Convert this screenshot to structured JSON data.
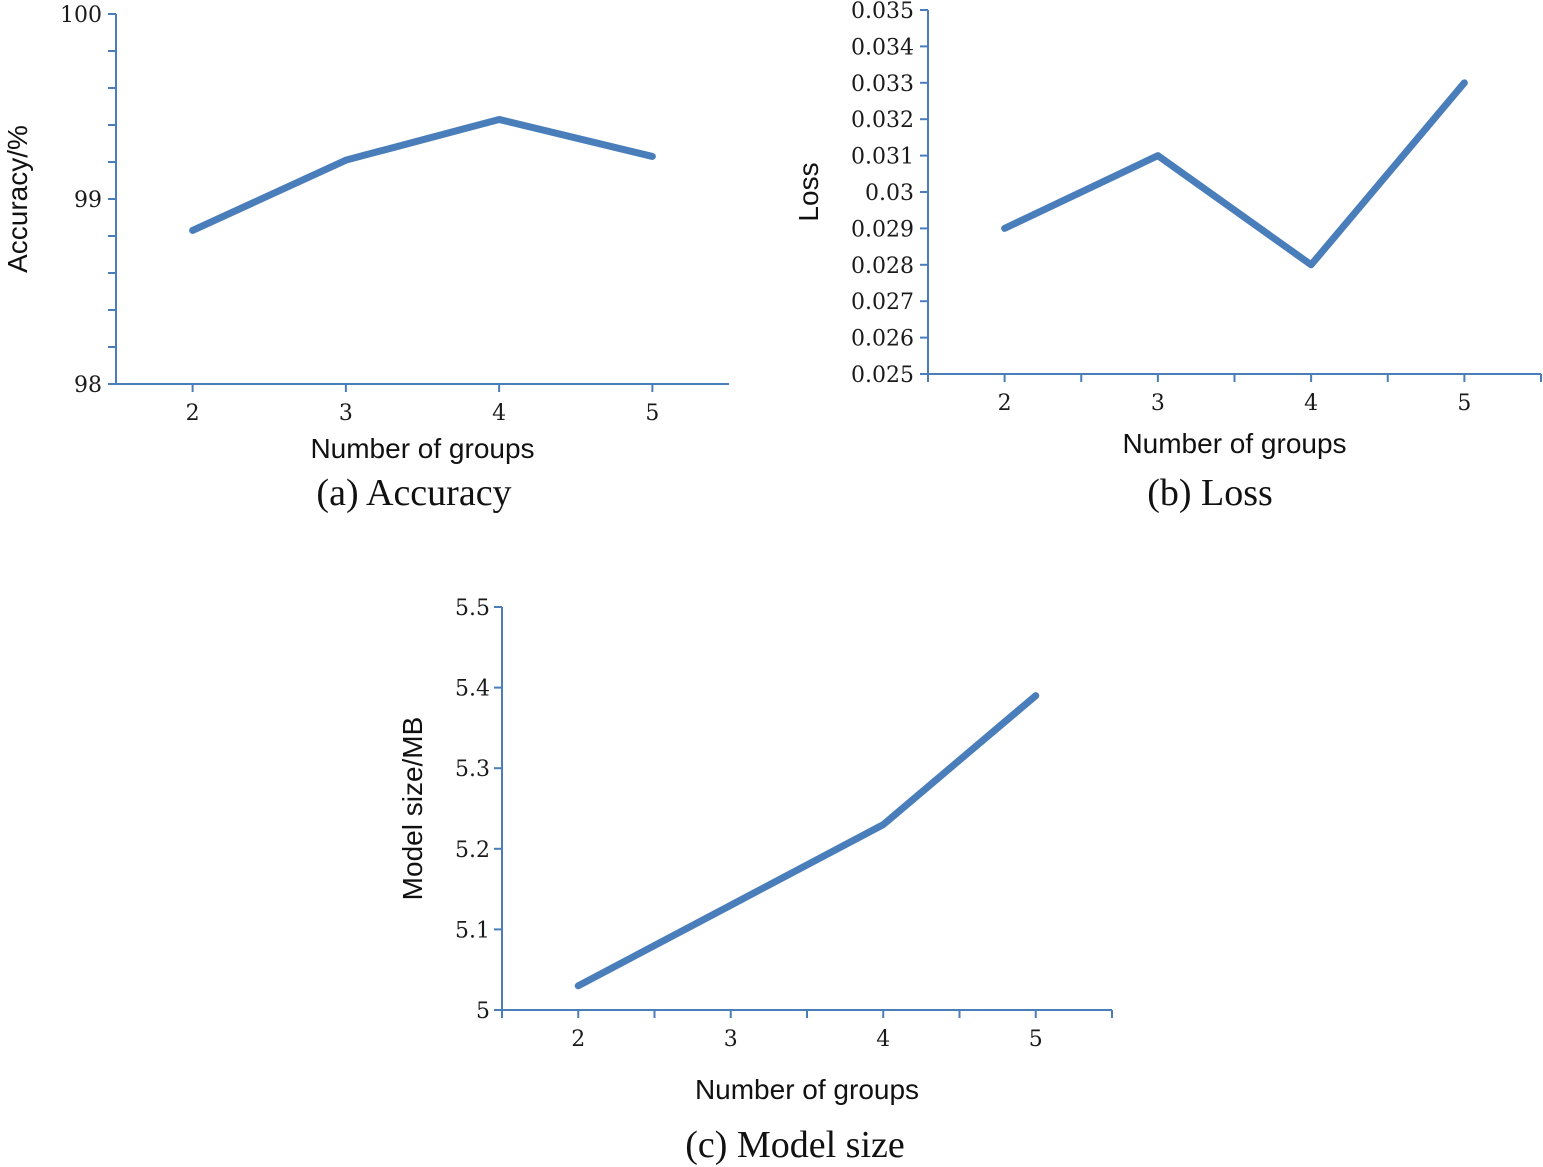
{
  "colors": {
    "line": "#4a7ebb",
    "axis": "#4a7ebb",
    "text": "#111111"
  },
  "chart_data": [
    {
      "type": "line",
      "caption": "(a) Accuracy",
      "xlabel": "Number of groups",
      "ylabel": "Accuracy/%",
      "x": [
        2,
        3,
        4,
        5
      ],
      "series": [
        {
          "name": "Accuracy",
          "values": [
            98.83,
            99.21,
            99.43,
            99.23
          ]
        }
      ],
      "ylim": [
        98,
        100
      ],
      "yticks": [
        98,
        99,
        100
      ],
      "ytick_labels": [
        "98",
        "99",
        "100"
      ],
      "y_minor_step": 0.2,
      "xtick_labels": [
        "2",
        "3",
        "4",
        "5"
      ]
    },
    {
      "type": "line",
      "caption": "(b) Loss",
      "xlabel": "Number of groups",
      "ylabel": "Loss",
      "x": [
        2,
        3,
        4,
        5
      ],
      "series": [
        {
          "name": "Loss",
          "values": [
            0.029,
            0.031,
            0.028,
            0.033
          ]
        }
      ],
      "ylim": [
        0.025,
        0.035
      ],
      "yticks": [
        0.025,
        0.026,
        0.027,
        0.028,
        0.029,
        0.03,
        0.031,
        0.032,
        0.033,
        0.034,
        0.035
      ],
      "ytick_labels": [
        "0.025",
        "0.026",
        "0.027",
        "0.028",
        "0.029",
        "0.03",
        "0.031",
        "0.032",
        "0.033",
        "0.034",
        "0.035"
      ],
      "y_minor_step": 0,
      "xtick_labels": [
        "2",
        "3",
        "4",
        "5"
      ]
    },
    {
      "type": "line",
      "caption": "(c) Model size",
      "xlabel": "Number of groups",
      "ylabel": "Model size/MB",
      "x": [
        2,
        3,
        4,
        5
      ],
      "series": [
        {
          "name": "Model size",
          "values": [
            5.03,
            5.13,
            5.23,
            5.39
          ]
        }
      ],
      "ylim": [
        5.0,
        5.5
      ],
      "yticks": [
        5.0,
        5.1,
        5.2,
        5.3,
        5.4,
        5.5
      ],
      "ytick_labels": [
        "5",
        "5.1",
        "5.2",
        "5.3",
        "5.4",
        "5.5"
      ],
      "y_minor_step": 0,
      "xtick_labels": [
        "2",
        "3",
        "4",
        "5"
      ]
    }
  ]
}
